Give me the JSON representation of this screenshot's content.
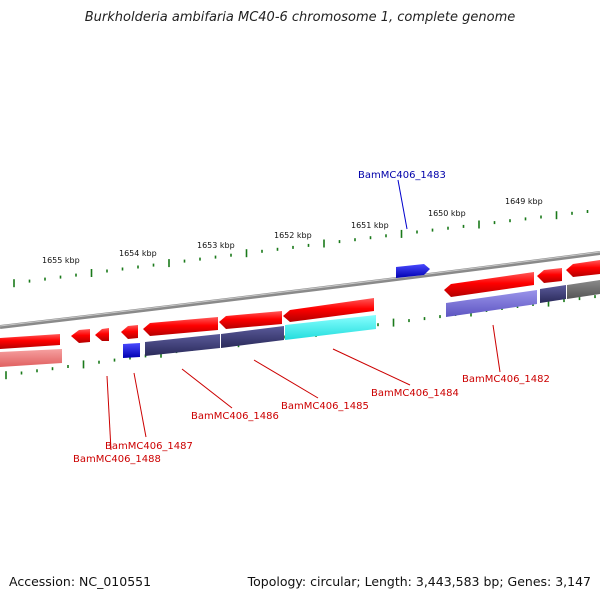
{
  "title": "Burkholderia ambifaria MC40-6 chromosome 1, complete genome",
  "footer": {
    "accession": "Accession: NC_010551",
    "stats": "Topology: circular; Length: 3,443,583 bp; Genes: 3,147"
  },
  "ticks": [
    {
      "label": "1655 kbp"
    },
    {
      "label": "1654 kbp"
    },
    {
      "label": "1653 kbp"
    },
    {
      "label": "1652 kbp"
    },
    {
      "label": "1651 kbp"
    },
    {
      "label": "1650 kbp"
    },
    {
      "label": "1649 kbp"
    }
  ],
  "genes": [
    {
      "name": "BamMC406_1483",
      "color": "#0000aa"
    },
    {
      "name": "BamMC406_1482",
      "color": "#cc0000"
    },
    {
      "name": "BamMC406_1484",
      "color": "#cc0000"
    },
    {
      "name": "BamMC406_1485",
      "color": "#cc0000"
    },
    {
      "name": "BamMC406_1486",
      "color": "#cc0000"
    },
    {
      "name": "BamMC406_1487",
      "color": "#cc0000"
    },
    {
      "name": "BamMC406_1488",
      "color": "#cc0000"
    }
  ],
  "colors": {
    "backbone": "#8a8a8a",
    "cds_forward": "#ff0000",
    "cds_reverse": "#ff0000",
    "blue_gene": "#0000ee",
    "tick": "#1a7a1a",
    "rna_purple": "#3b3b7a",
    "rna_cyan": "#33ffff",
    "rna_lavender": "#7b73d6",
    "rna_pink": "#f08080",
    "rna_gray": "#666666"
  }
}
